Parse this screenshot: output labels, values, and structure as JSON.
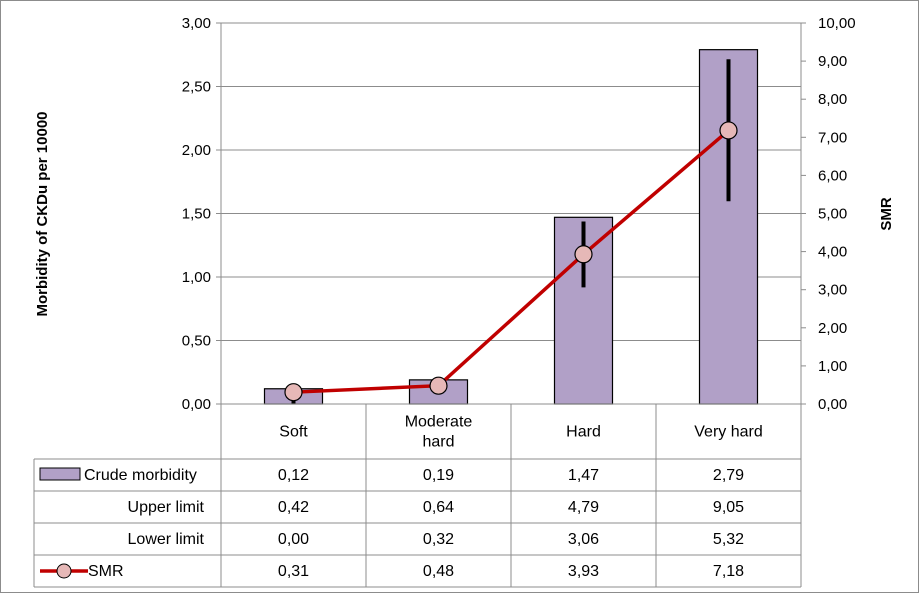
{
  "chart_data": {
    "type": "bar",
    "categories": [
      "Soft",
      "Moderate hard",
      "Hard",
      "Very hard"
    ],
    "category_lines": [
      [
        "Soft"
      ],
      [
        "Moderate",
        "hard"
      ],
      [
        "Hard"
      ],
      [
        "Very hard"
      ]
    ],
    "ylabel": "Morbidity of CKDu per 10000",
    "y2label": "SMR",
    "ylim": [
      0,
      3
    ],
    "y_ticks": [
      "0,00",
      "0,50",
      "1,00",
      "1,50",
      "2,00",
      "2,50",
      "3,00"
    ],
    "y2lim": [
      0,
      10
    ],
    "y2_ticks": [
      "0,00",
      "1,00",
      "2,00",
      "3,00",
      "4,00",
      "5,00",
      "6,00",
      "7,00",
      "8,00",
      "9,00",
      "10,00"
    ],
    "grid": true,
    "series": [
      {
        "name": "Crude morbidity",
        "kind": "bar",
        "axis": "left",
        "color": "#b1a0c7",
        "values": [
          0.12,
          0.19,
          1.47,
          2.79
        ],
        "labels": [
          "0,12",
          "0,19",
          "1,47",
          "2,79"
        ]
      },
      {
        "name": "Upper limit",
        "kind": "error-upper",
        "axis": "right",
        "values": [
          0.42,
          0.64,
          4.79,
          9.05
        ],
        "labels": [
          "0,42",
          "0,64",
          "4,79",
          "9,05"
        ]
      },
      {
        "name": "Lower limit",
        "kind": "error-lower",
        "axis": "right",
        "values": [
          0.0,
          0.32,
          3.06,
          5.32
        ],
        "labels": [
          "0,00",
          "0,32",
          "3,06",
          "5,32"
        ]
      },
      {
        "name": "SMR",
        "kind": "line",
        "axis": "right",
        "color": "#c00000",
        "marker_color": "#e6b8b7",
        "values": [
          0.31,
          0.48,
          3.93,
          7.18
        ],
        "labels": [
          "0,31",
          "0,48",
          "3,93",
          "7,18"
        ]
      }
    ]
  }
}
